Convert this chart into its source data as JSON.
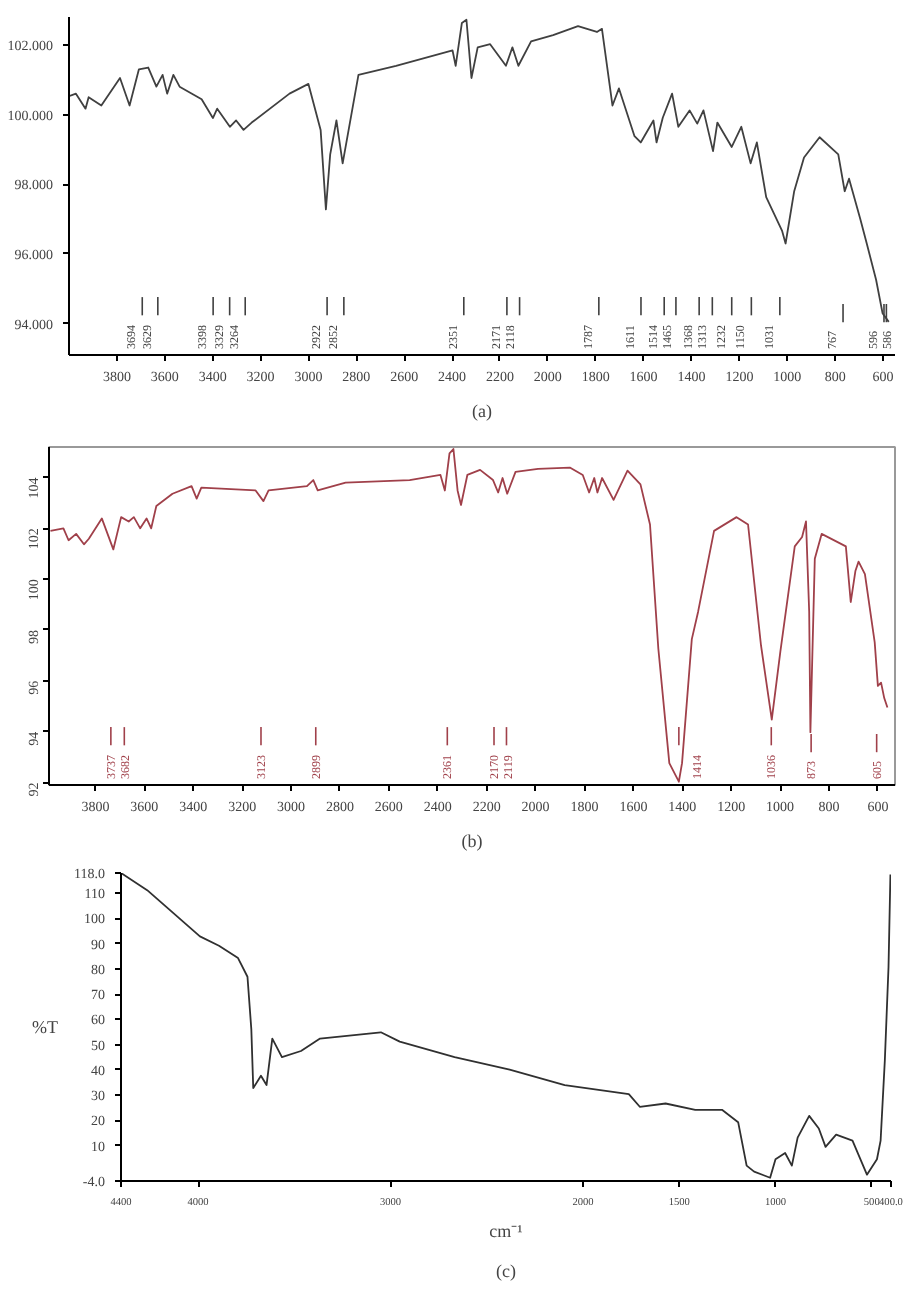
{
  "chart_data": [
    {
      "type": "line",
      "title": "(a)",
      "xlim": [
        4000,
        550
      ],
      "ylim": [
        93.1,
        102.8
      ],
      "xticks": [
        3800,
        3600,
        3400,
        3200,
        3000,
        2800,
        2600,
        2400,
        2200,
        2000,
        1800,
        1600,
        1400,
        1200,
        1000,
        800,
        600
      ],
      "yticks": [
        {
          "value": 94,
          "label": "94.000"
        },
        {
          "value": 96,
          "label": "96.000"
        },
        {
          "value": 98,
          "label": "98.000"
        },
        {
          "value": 100,
          "label": "100.000"
        },
        {
          "value": 102,
          "label": "102.000"
        }
      ],
      "x": [
        4000,
        3971,
        3931,
        3918,
        3865,
        3787,
        3747,
        3708,
        3669,
        3635,
        3609,
        3590,
        3564,
        3538,
        3446,
        3399,
        3381,
        3328,
        3302,
        3271,
        3237,
        3079,
        3000,
        2949,
        2927,
        2909,
        2883,
        2857,
        2791,
        2634,
        2398,
        2385,
        2359,
        2340,
        2319,
        2293,
        2241,
        2175,
        2148,
        2123,
        2070,
        1978,
        1874,
        1795,
        1774,
        1730,
        1703,
        1638,
        1612,
        1559,
        1546,
        1520,
        1481,
        1455,
        1408,
        1376,
        1350,
        1310,
        1292,
        1232,
        1192,
        1153,
        1127,
        1088,
        1022,
        1007,
        971,
        930,
        865,
        787,
        760,
        742,
        695,
        668,
        629,
        602,
        576
      ],
      "series": [
        {
          "color": "#404040",
          "values": [
            100.53,
            100.6,
            100.17,
            100.5,
            100.26,
            101.05,
            100.26,
            101.3,
            101.35,
            100.8,
            101.14,
            100.6,
            101.14,
            100.8,
            100.44,
            99.9,
            100.17,
            99.65,
            99.83,
            99.56,
            99.77,
            100.6,
            100.88,
            99.56,
            97.28,
            98.86,
            99.83,
            98.6,
            101.14,
            101.4,
            101.84,
            101.4,
            102.63,
            102.72,
            101.05,
            101.93,
            102.02,
            101.4,
            101.93,
            101.4,
            102.1,
            102.28,
            102.54,
            102.37,
            102.46,
            100.26,
            100.75,
            99.38,
            99.2,
            99.83,
            99.2,
            99.91,
            100.6,
            99.65,
            100.12,
            99.74,
            100.12,
            98.95,
            99.77,
            99.07,
            99.65,
            98.6,
            99.2,
            97.63,
            96.67,
            96.3,
            97.8,
            98.77,
            99.35,
            98.86,
            97.8,
            98.16,
            97.0,
            96.3,
            95.26,
            94.3,
            94.05
          ]
        }
      ],
      "ref_lines": [
        {
          "axis": "x",
          "value": 3694,
          "label": "3694"
        },
        {
          "axis": "x",
          "value": 3629,
          "label": "3629"
        },
        {
          "axis": "x",
          "value": 3398,
          "label": "3398"
        },
        {
          "axis": "x",
          "value": 3329,
          "label": "3329"
        },
        {
          "axis": "x",
          "value": 3264,
          "label": "3264"
        },
        {
          "axis": "x",
          "value": 2922,
          "label": "2922"
        },
        {
          "axis": "x",
          "value": 2852,
          "label": "2852"
        },
        {
          "axis": "x",
          "value": 2351,
          "label": "2351"
        },
        {
          "axis": "x",
          "value": 2171,
          "label": "2171"
        },
        {
          "axis": "x",
          "value": 2118,
          "label": "2118"
        },
        {
          "axis": "x",
          "value": 1787,
          "label": "1787"
        },
        {
          "axis": "x",
          "value": 1611,
          "label": "1611"
        },
        {
          "axis": "x",
          "value": 1514,
          "label": "1514"
        },
        {
          "axis": "x",
          "value": 1465,
          "label": "1465"
        },
        {
          "axis": "x",
          "value": 1368,
          "label": "1368"
        },
        {
          "axis": "x",
          "value": 1313,
          "label": "1313"
        },
        {
          "axis": "x",
          "value": 1232,
          "label": "1232"
        },
        {
          "axis": "x",
          "value": 1150,
          "label": "1150"
        },
        {
          "axis": "x",
          "value": 1031,
          "label": "1031"
        },
        {
          "axis": "x",
          "value": 767,
          "label": "767"
        },
        {
          "axis": "x",
          "value": 596,
          "label": "596"
        },
        {
          "axis": "x",
          "value": 586,
          "label": "586"
        }
      ]
    },
    {
      "type": "line",
      "title": "(b)",
      "xlim": [
        3990,
        530
      ],
      "ylim": [
        91.9,
        105.2
      ],
      "xticks": [
        3800,
        3600,
        3400,
        3200,
        3000,
        2800,
        2600,
        2400,
        2200,
        2000,
        1800,
        1600,
        1400,
        1200,
        1000,
        800,
        600
      ],
      "yticks": [
        92,
        94,
        96,
        98,
        100,
        102,
        104
      ],
      "x": [
        3984,
        3931,
        3910,
        3879,
        3847,
        3827,
        3774,
        3727,
        3695,
        3664,
        3643,
        3617,
        3591,
        3572,
        3551,
        3485,
        3407,
        3386,
        3367,
        3145,
        3113,
        3092,
        2935,
        2909,
        2891,
        2777,
        2515,
        2389,
        2371,
        2352,
        2336,
        2319,
        2305,
        2279,
        2227,
        2174,
        2153,
        2135,
        2116,
        2082,
        1990,
        1860,
        1807,
        1781,
        1760,
        1747,
        1728,
        1681,
        1624,
        1571,
        1532,
        1498,
        1453,
        1414,
        1401,
        1361,
        1335,
        1270,
        1178,
        1131,
        1078,
        1034,
        999,
        940,
        910,
        894,
        881,
        876,
        858,
        830,
        731,
        711,
        692,
        679,
        653,
        613,
        600,
        587,
        574,
        561
      ],
      "series": [
        {
          "color": "#a0404a",
          "values": [
            101.9,
            102.0,
            101.53,
            101.78,
            101.37,
            101.59,
            102.39,
            101.17,
            102.44,
            102.27,
            102.44,
            102.0,
            102.39,
            102.0,
            102.88,
            103.36,
            103.66,
            103.17,
            103.6,
            103.49,
            103.07,
            103.49,
            103.66,
            103.9,
            103.49,
            103.8,
            103.9,
            104.1,
            103.49,
            104.95,
            105.12,
            103.49,
            102.92,
            104.1,
            104.3,
            103.9,
            103.41,
            103.98,
            103.36,
            104.22,
            104.34,
            104.39,
            104.1,
            103.41,
            103.98,
            103.41,
            103.98,
            103.12,
            104.27,
            103.73,
            102.15,
            97.27,
            92.76,
            92.03,
            92.76,
            97.64,
            98.73,
            101.9,
            102.44,
            102.15,
            97.39,
            94.47,
            97.14,
            101.29,
            101.66,
            102.27,
            98.73,
            93.98,
            100.8,
            101.78,
            101.29,
            99.1,
            100.32,
            100.69,
            100.2,
            97.51,
            95.8,
            95.93,
            95.32,
            94.95
          ]
        }
      ],
      "ref_lines": [
        {
          "axis": "x",
          "value": 3737,
          "label": "3737"
        },
        {
          "axis": "x",
          "value": 3682,
          "label": "3682"
        },
        {
          "axis": "x",
          "value": 3123,
          "label": "3123"
        },
        {
          "axis": "x",
          "value": 2899,
          "label": "2899"
        },
        {
          "axis": "x",
          "value": 2361,
          "label": "2361"
        },
        {
          "axis": "x",
          "value": 2170,
          "label": "2170"
        },
        {
          "axis": "x",
          "value": 2119,
          "label": "2119"
        },
        {
          "axis": "x",
          "value": 1414,
          "label": "1414"
        },
        {
          "axis": "x",
          "value": 1036,
          "label": "1036"
        },
        {
          "axis": "x",
          "value": 873,
          "label": "873"
        },
        {
          "axis": "x",
          "value": 605,
          "label": "605"
        }
      ]
    },
    {
      "type": "line",
      "title": "(c)",
      "xlabel": "cm⁻¹",
      "ylabel": "%T",
      "xlim": [
        4400,
        400
      ],
      "ylim": [
        -4,
        118
      ],
      "xticks": [
        4400,
        4000,
        3000,
        2000,
        1500,
        1000,
        500,
        {
          "value": 400,
          "label": "400.0"
        }
      ],
      "yticks": [
        {
          "value": -4,
          "label": "-4.0"
        },
        10,
        20,
        30,
        40,
        50,
        60,
        70,
        80,
        90,
        100,
        110,
        {
          "value": 118,
          "label": "118.0"
        }
      ],
      "x": [
        4400,
        4264,
        3990,
        3891,
        3792,
        3743,
        3723,
        3713,
        3673,
        3644,
        3614,
        3564,
        3465,
        3366,
        3050,
        2952,
        2667,
        2381,
        2095,
        1762,
        1705,
        1571,
        1417,
        1278,
        1194,
        1150,
        1111,
        1028,
        1000,
        950,
        915,
        885,
        825,
        775,
        740,
        685,
        600,
        525,
        473,
        454,
        432,
        413,
        403
      ],
      "series": [
        {
          "color": "#303030",
          "values": [
            118,
            111.2,
            92.9,
            89.2,
            84.3,
            76.9,
            56.1,
            32.8,
            37.7,
            34.0,
            52.4,
            45.1,
            47.5,
            52.4,
            54.9,
            51.2,
            45.1,
            40.1,
            34.0,
            30.4,
            25.4,
            26.7,
            24.2,
            24.2,
            19.3,
            2.1,
            -0.3,
            -2.7,
            4.6,
            7.1,
            2.1,
            13.2,
            21.8,
            16.8,
            9.5,
            14.4,
            12.0,
            -1.5,
            4.6,
            12.0,
            43.8,
            80.6,
            117.4
          ]
        }
      ]
    }
  ]
}
